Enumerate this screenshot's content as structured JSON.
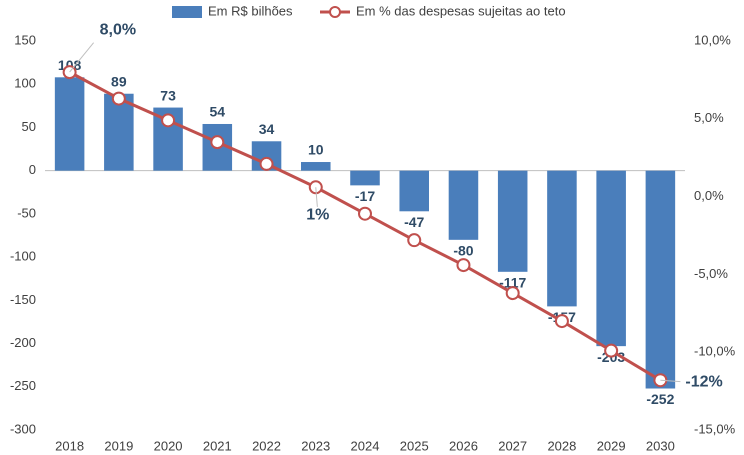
{
  "chart_data": {
    "type": "bar-line",
    "categories": [
      "2018",
      "2019",
      "2020",
      "2021",
      "2022",
      "2023",
      "2024",
      "2025",
      "2026",
      "2027",
      "2028",
      "2029",
      "2030"
    ],
    "series": [
      {
        "name": "Em R$ bilhões",
        "type": "bar",
        "color": "#4a7ebb",
        "values": [
          108,
          89,
          73,
          54,
          34,
          10,
          -17,
          -47,
          -80,
          -117,
          -157,
          -203,
          -252
        ]
      },
      {
        "name": "Em % das despesas sujeitas ao teto",
        "type": "line",
        "axis": "y2",
        "color": "#c0504d",
        "values": [
          8.0,
          6.3,
          4.9,
          3.5,
          2.1,
          0.6,
          -1.1,
          -2.8,
          -4.4,
          -6.2,
          -8.0,
          -9.9,
          -11.8
        ],
        "value_labels": [
          "8,0%",
          null,
          null,
          null,
          null,
          "1%",
          null,
          null,
          null,
          null,
          null,
          null,
          "-12%"
        ]
      }
    ],
    "ylim": [
      -300,
      150
    ],
    "yticks": [
      -300,
      -250,
      -200,
      -150,
      -100,
      -50,
      0,
      50,
      100,
      150
    ],
    "y2lim": [
      -15,
      10
    ],
    "y2ticks": [
      {
        "value": -15,
        "label": "-15,0%"
      },
      {
        "value": -10,
        "label": "-10,0%"
      },
      {
        "value": -5,
        "label": "-5,0%"
      },
      {
        "value": 0,
        "label": "0,0%"
      },
      {
        "value": 5,
        "label": "5,0%"
      },
      {
        "value": 10,
        "label": "10,0%"
      }
    ],
    "grid": false,
    "legend": "top"
  }
}
